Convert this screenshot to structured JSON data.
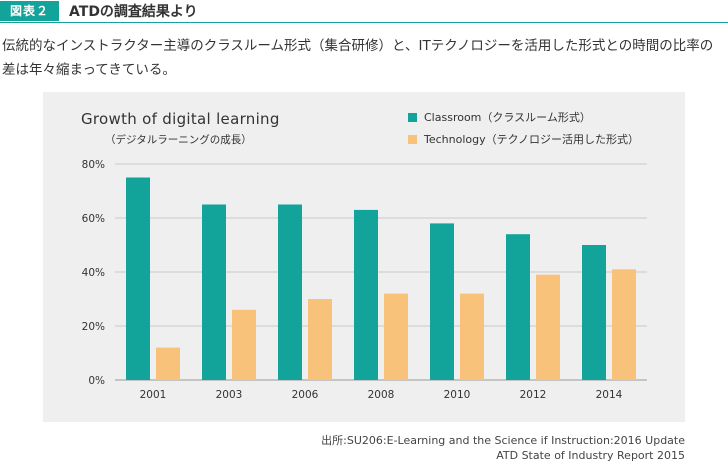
{
  "header": {
    "badge": "図表２",
    "title": "ATDの調査結果より"
  },
  "description": "伝統的なインストラクター主導のクラスルーム形式（集合研修）と、ITテクノロジーを活用した形式との時間の比率の差は年々縮まってきている。",
  "chart_data": {
    "type": "bar",
    "title": "Growth of digital learning",
    "subtitle": "（デジタルラーニングの成長）",
    "xlabel": "",
    "ylabel": "",
    "categories": [
      "2001",
      "2003",
      "2006",
      "2008",
      "2010",
      "2012",
      "2014"
    ],
    "series": [
      {
        "name": "Classroom（クラスルーム形式）",
        "color": "#12a39a",
        "values": [
          75,
          65,
          65,
          63,
          58,
          54,
          50
        ]
      },
      {
        "name": "Technology（テクノロジー活用した形式）",
        "color": "#f8c27a",
        "values": [
          12,
          26,
          30,
          32,
          32,
          39,
          41
        ]
      }
    ],
    "ylim": [
      0,
      80
    ],
    "yticks": [
      0,
      20,
      40,
      60,
      80
    ],
    "ytick_labels": [
      "0%",
      "20%",
      "40%",
      "60%",
      "80%"
    ],
    "grid": true,
    "legend_position": "top-right"
  },
  "source": {
    "line1": "出所:SU206:E-Learning and the Science if Instruction:2016 Update",
    "line2": "ATD State of Industry Report 2015"
  }
}
